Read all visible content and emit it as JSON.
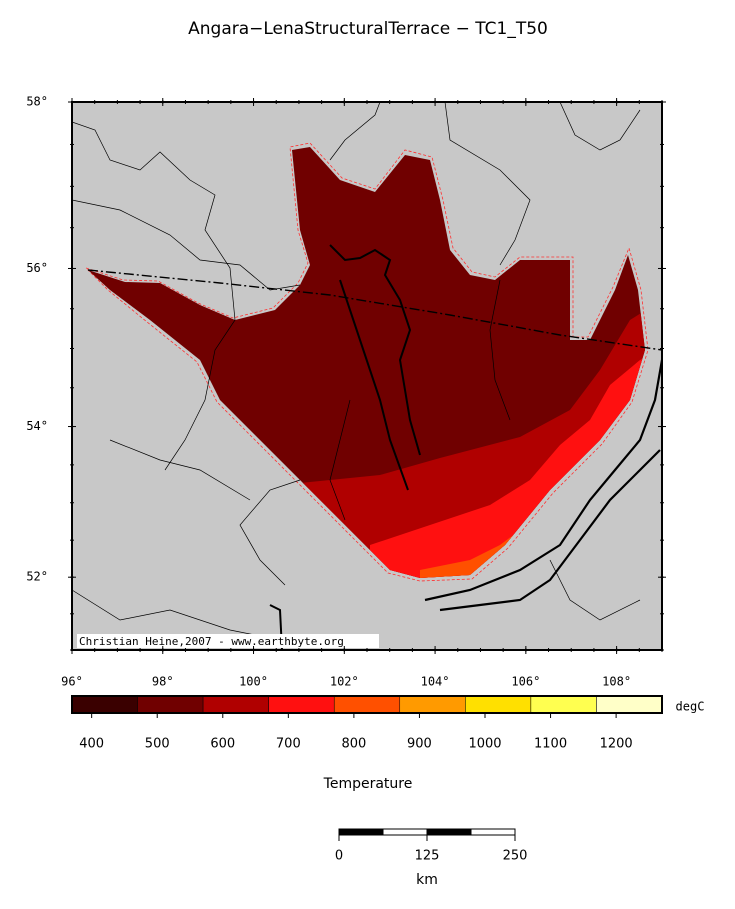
{
  "title": "Angara−LenaStructuralTerrace − TC1_T50",
  "map": {
    "lonlim": [
      96,
      109
    ],
    "latlim": [
      51,
      58
    ],
    "lonticks": [
      {
        "value": 96,
        "label": "96°"
      },
      {
        "value": 98,
        "label": "98°"
      },
      {
        "value": 100,
        "label": "100°"
      },
      {
        "value": 102,
        "label": "102°"
      },
      {
        "value": 104,
        "label": "104°"
      },
      {
        "value": 106,
        "label": "106°"
      },
      {
        "value": 108,
        "label": "108°"
      }
    ],
    "latticks": [
      {
        "value": 52,
        "label": "52°"
      },
      {
        "value": 54,
        "label": "54°"
      },
      {
        "value": 56,
        "label": "56°"
      },
      {
        "value": 58,
        "label": "58°"
      }
    ],
    "credit": "Christian Heine,2007 - www.earthbyte.org"
  },
  "colorbar": {
    "bounds": [
      370,
      470,
      570,
      670,
      770,
      870,
      970,
      1070,
      1170,
      1270
    ],
    "colors": [
      "#3a0000",
      "#700000",
      "#b00000",
      "#ff1010",
      "#ff5000",
      "#ff9a00",
      "#ffe000",
      "#ffff50",
      "#ffffc8"
    ],
    "ticks": [
      400,
      500,
      600,
      700,
      800,
      900,
      1000,
      1100,
      1200
    ],
    "unit": "degC",
    "label": "Temperature"
  },
  "scalebar": {
    "ticks": [
      0,
      125,
      250
    ],
    "label": "km"
  }
}
